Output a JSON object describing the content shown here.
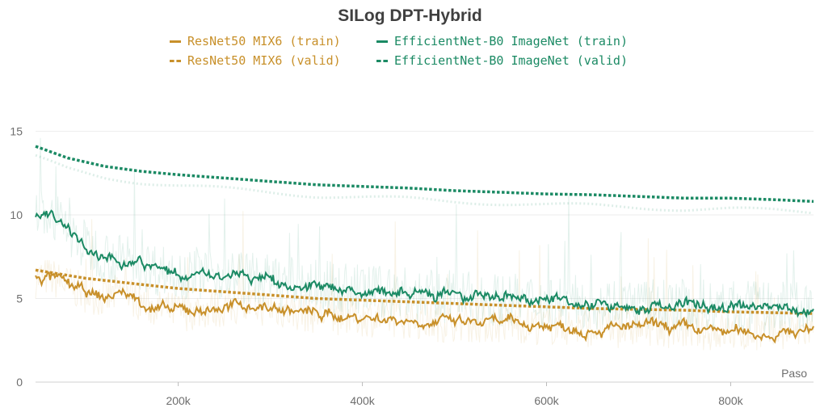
{
  "chart_data": {
    "type": "line",
    "title": "SILog DPT-Hybrid",
    "xlabel": "Paso",
    "ylabel": "",
    "xlim": [
      45000,
      890000
    ],
    "ylim": [
      0,
      18.5
    ],
    "x_ticks": [
      "200k",
      "400k",
      "600k",
      "800k"
    ],
    "x_tick_values": [
      200000,
      400000,
      600000,
      800000
    ],
    "y_ticks": [
      "0",
      "5",
      "10",
      "15"
    ],
    "y_tick_values": [
      0,
      5,
      10,
      15
    ],
    "grid": true,
    "legend_position": "top-center",
    "series": [
      {
        "name": "ResNet50 MIX6 (train)",
        "color": "#c8902a",
        "style": "solid",
        "x": [
          45000,
          60000,
          80000,
          100000,
          120000,
          140000,
          160000,
          180000,
          200000,
          240000,
          280000,
          320000,
          360000,
          400000,
          440000,
          480000,
          520000,
          560000,
          600000,
          640000,
          680000,
          720000,
          760000,
          800000,
          840000,
          870000,
          890000
        ],
        "y": [
          6.2,
          6.3,
          5.8,
          5.3,
          5.0,
          5.4,
          4.8,
          4.3,
          4.2,
          4.4,
          4.6,
          4.3,
          4.0,
          3.9,
          3.8,
          3.6,
          3.5,
          3.5,
          3.4,
          3.3,
          3.2,
          3.3,
          3.1,
          3.0,
          2.9,
          3.0,
          3.2
        ]
      },
      {
        "name": "ResNet50 MIX6 (valid)",
        "color": "#c8902a",
        "style": "dashed",
        "x": [
          45000,
          100000,
          150000,
          200000,
          250000,
          300000,
          350000,
          400000,
          450000,
          500000,
          550000,
          600000,
          650000,
          700000,
          750000,
          800000,
          850000,
          890000
        ],
        "y": [
          6.7,
          6.2,
          5.9,
          5.6,
          5.4,
          5.2,
          5.0,
          4.9,
          4.8,
          4.7,
          4.6,
          4.5,
          4.4,
          4.35,
          4.3,
          4.2,
          4.15,
          4.1
        ]
      },
      {
        "name": "EfficientNet-B0 ImageNet (train)",
        "color": "#1b8a64",
        "style": "solid",
        "x": [
          45000,
          60000,
          80000,
          100000,
          120000,
          140000,
          160000,
          180000,
          200000,
          240000,
          280000,
          320000,
          360000,
          400000,
          440000,
          480000,
          520000,
          560000,
          600000,
          640000,
          680000,
          720000,
          760000,
          800000,
          840000,
          870000,
          890000
        ],
        "y": [
          9.9,
          10.2,
          9.0,
          8.1,
          7.6,
          7.2,
          7.0,
          6.7,
          6.6,
          6.5,
          6.2,
          5.9,
          5.7,
          5.5,
          5.3,
          5.1,
          5.0,
          4.9,
          4.85,
          4.8,
          4.7,
          4.6,
          4.6,
          4.5,
          4.4,
          4.4,
          4.3
        ]
      },
      {
        "name": "EfficientNet-B0 ImageNet (valid)",
        "color": "#1b8a64",
        "style": "dashed",
        "x": [
          45000,
          80000,
          120000,
          160000,
          200000,
          250000,
          300000,
          350000,
          400000,
          450000,
          500000,
          550000,
          600000,
          650000,
          700000,
          750000,
          800000,
          850000,
          890000
        ],
        "y": [
          14.1,
          13.4,
          12.9,
          12.6,
          12.4,
          12.2,
          12.0,
          11.8,
          11.7,
          11.6,
          11.45,
          11.35,
          11.25,
          11.2,
          11.1,
          11.0,
          11.0,
          10.9,
          10.8
        ]
      }
    ]
  }
}
